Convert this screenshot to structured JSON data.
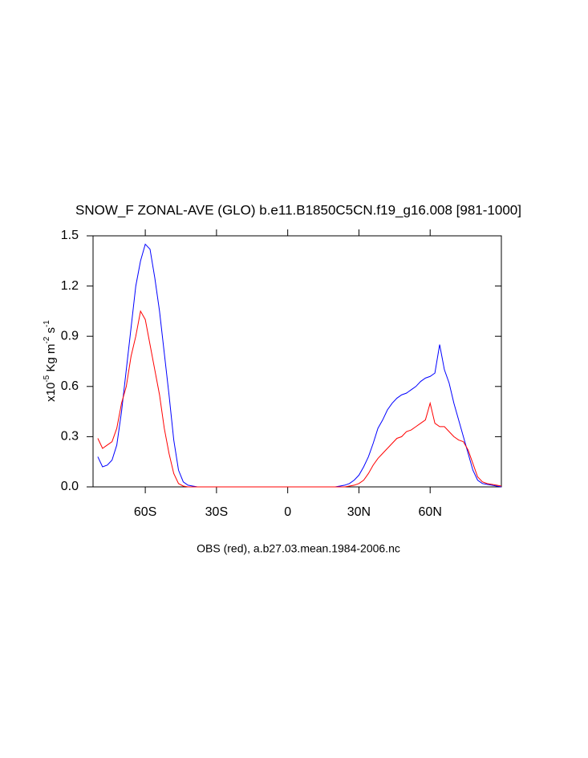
{
  "chart_data": {
    "type": "line",
    "title": "SNOW_F ZONAL-AVE (GLO) b.e11.B1850C5CN.f19_g16.008 [981-1000]",
    "subtitle": "OBS (red), a.b27.03.mean.1984-2006.nc",
    "ylabel_parts": [
      "x10",
      "-5",
      " Kg m",
      "-2",
      " s",
      "-1"
    ],
    "xlim": [
      -82,
      90
    ],
    "xticks": [
      {
        "value": -60,
        "label": "60S"
      },
      {
        "value": -30,
        "label": "30S"
      },
      0,
      {
        "value": 30,
        "label": "30N"
      },
      {
        "value": 60,
        "label": "60N"
      }
    ],
    "ylim": [
      0,
      1.5
    ],
    "yticks": [
      {
        "value": 0,
        "label": "0.0"
      },
      0.3,
      0.6,
      0.9,
      1.2,
      1.5
    ],
    "x": [
      -80,
      -78,
      -76,
      -74,
      -72,
      -70,
      -68,
      -66,
      -64,
      -62,
      -60,
      -58,
      -56,
      -54,
      -52,
      -50,
      -48,
      -46,
      -44,
      -42,
      -40,
      -38,
      -36,
      -34,
      -32,
      -30,
      -28,
      -26,
      -24,
      -22,
      -20,
      -18,
      -16,
      -14,
      -12,
      -10,
      -8,
      -6,
      -4,
      -2,
      0,
      2,
      4,
      6,
      8,
      10,
      12,
      14,
      16,
      18,
      20,
      22,
      24,
      26,
      28,
      30,
      32,
      34,
      36,
      38,
      40,
      42,
      44,
      46,
      48,
      50,
      52,
      54,
      56,
      58,
      60,
      62,
      64,
      66,
      68,
      70,
      72,
      74,
      76,
      78,
      80,
      82,
      84,
      86,
      88,
      90
    ],
    "series": [
      {
        "color": "#0000ff",
        "values": [
          0.18,
          0.12,
          0.13,
          0.16,
          0.25,
          0.45,
          0.7,
          0.95,
          1.2,
          1.35,
          1.45,
          1.42,
          1.25,
          1.05,
          0.8,
          0.55,
          0.28,
          0.1,
          0.03,
          0.01,
          0.005,
          0,
          0,
          0,
          0,
          0,
          0,
          0,
          0,
          0,
          0,
          0,
          0,
          0,
          0,
          0,
          0,
          0,
          0,
          0,
          0,
          0,
          0,
          0,
          0,
          0,
          0,
          0,
          0,
          0,
          0,
          0.005,
          0.01,
          0.02,
          0.04,
          0.07,
          0.12,
          0.18,
          0.26,
          0.35,
          0.4,
          0.46,
          0.5,
          0.53,
          0.55,
          0.56,
          0.58,
          0.6,
          0.63,
          0.65,
          0.66,
          0.68,
          0.85,
          0.7,
          0.62,
          0.5,
          0.4,
          0.3,
          0.2,
          0.1,
          0.04,
          0.02,
          0.015,
          0.01,
          0.005,
          0
        ]
      },
      {
        "color": "#ff0000",
        "values": [
          0.29,
          0.23,
          0.25,
          0.27,
          0.35,
          0.5,
          0.6,
          0.78,
          0.9,
          1.05,
          1.0,
          0.85,
          0.7,
          0.55,
          0.35,
          0.2,
          0.08,
          0.02,
          0.005,
          0,
          0,
          0,
          0,
          0,
          0,
          0,
          0,
          0,
          0,
          0,
          0,
          0,
          0,
          0,
          0,
          0,
          0,
          0,
          0,
          0,
          0,
          0,
          0,
          0,
          0,
          0,
          0,
          0,
          0,
          0,
          0,
          0,
          0,
          0.005,
          0.01,
          0.02,
          0.04,
          0.08,
          0.13,
          0.17,
          0.2,
          0.23,
          0.26,
          0.29,
          0.3,
          0.33,
          0.34,
          0.36,
          0.38,
          0.4,
          0.5,
          0.38,
          0.36,
          0.36,
          0.33,
          0.3,
          0.28,
          0.27,
          0.22,
          0.14,
          0.06,
          0.03,
          0.02,
          0.015,
          0.01,
          0.005
        ]
      }
    ]
  }
}
